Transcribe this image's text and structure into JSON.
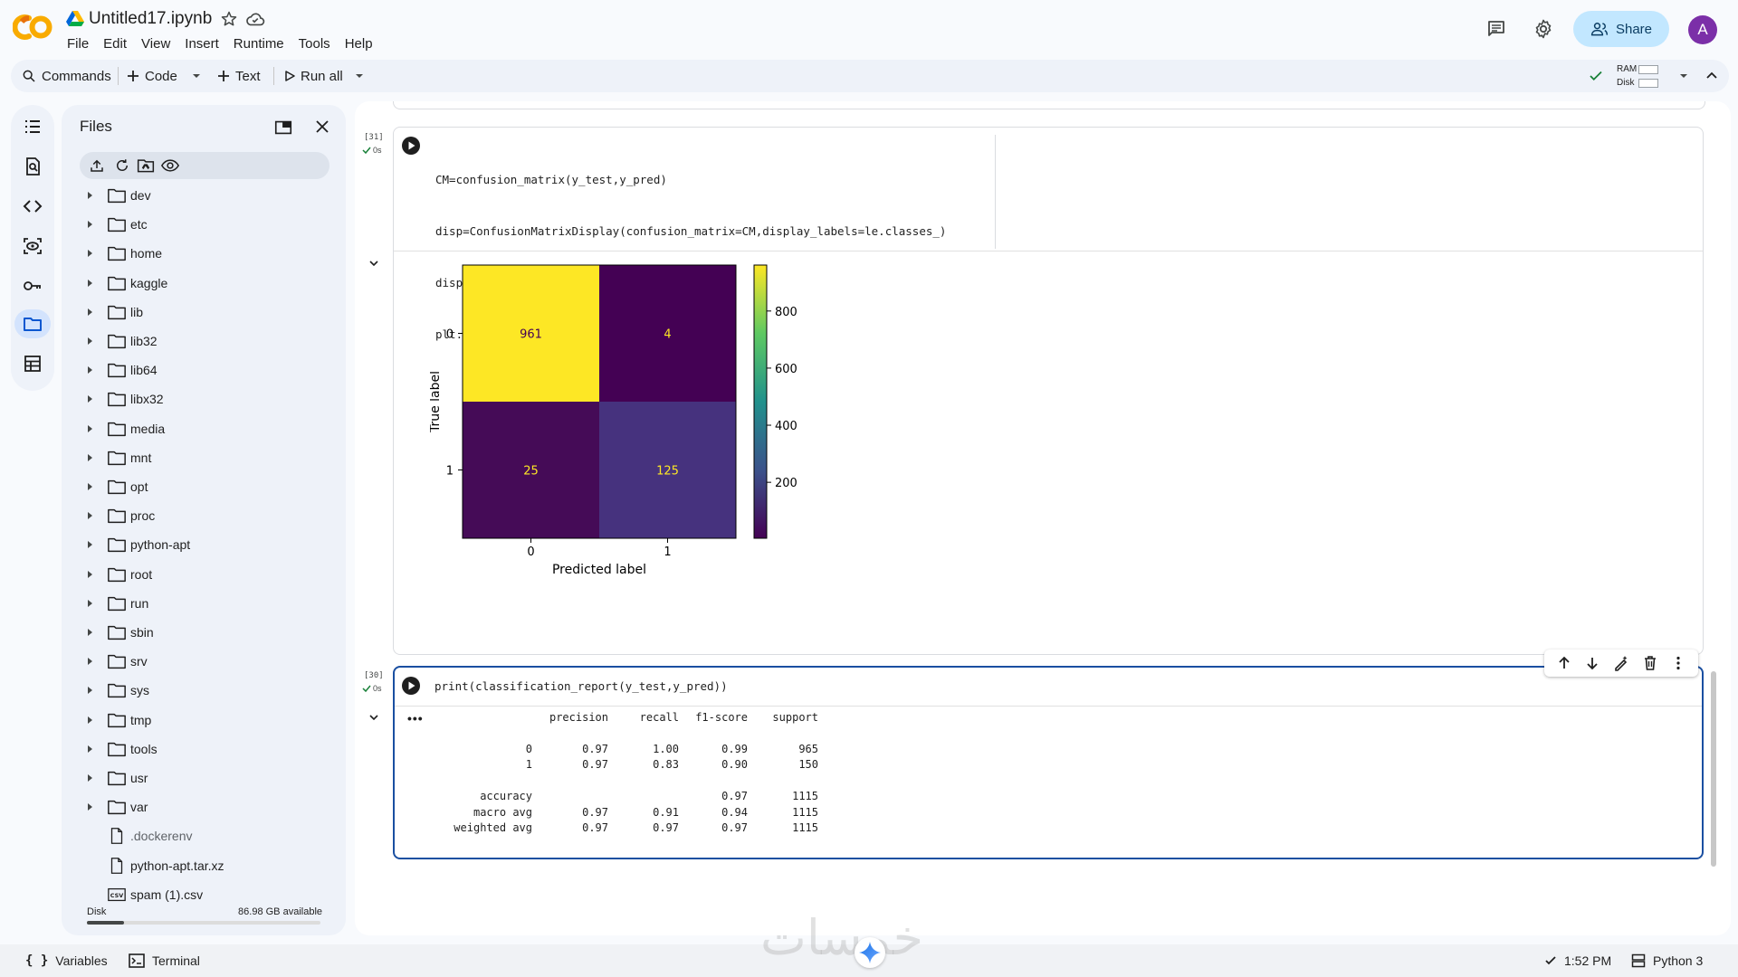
{
  "header": {
    "notebook_title": "Untitled17.ipynb",
    "menu": [
      "File",
      "Edit",
      "View",
      "Insert",
      "Runtime",
      "Tools",
      "Help"
    ],
    "share_label": "Share",
    "avatar_initial": "A"
  },
  "toolbar": {
    "commands_label": "Commands",
    "code_label": "Code",
    "text_label": "Text",
    "run_all_label": "Run all",
    "ram_label": "RAM",
    "disk_label": "Disk"
  },
  "rail": {
    "icons": [
      "table-of-contents-icon",
      "find-icon",
      "code-snippets-icon",
      "variables-inspector-icon",
      "secrets-key-icon",
      "files-icon",
      "data-table-icon"
    ],
    "active": "files-icon"
  },
  "files": {
    "title": "Files",
    "tree": [
      {
        "name": "dev",
        "type": "folder"
      },
      {
        "name": "etc",
        "type": "folder"
      },
      {
        "name": "home",
        "type": "folder"
      },
      {
        "name": "kaggle",
        "type": "folder"
      },
      {
        "name": "lib",
        "type": "folder"
      },
      {
        "name": "lib32",
        "type": "folder"
      },
      {
        "name": "lib64",
        "type": "folder"
      },
      {
        "name": "libx32",
        "type": "folder"
      },
      {
        "name": "media",
        "type": "folder"
      },
      {
        "name": "mnt",
        "type": "folder"
      },
      {
        "name": "opt",
        "type": "folder"
      },
      {
        "name": "proc",
        "type": "folder"
      },
      {
        "name": "python-apt",
        "type": "folder"
      },
      {
        "name": "root",
        "type": "folder"
      },
      {
        "name": "run",
        "type": "folder"
      },
      {
        "name": "sbin",
        "type": "folder"
      },
      {
        "name": "srv",
        "type": "folder"
      },
      {
        "name": "sys",
        "type": "folder"
      },
      {
        "name": "tmp",
        "type": "folder"
      },
      {
        "name": "tools",
        "type": "folder"
      },
      {
        "name": "usr",
        "type": "folder"
      },
      {
        "name": "var",
        "type": "folder"
      },
      {
        "name": ".dockerenv",
        "type": "file"
      },
      {
        "name": "python-apt.tar.xz",
        "type": "file"
      },
      {
        "name": "spam (1).csv",
        "type": "csv"
      }
    ],
    "disk_label": "Disk",
    "disk_available": "86.98 GB available",
    "disk_used_fraction": 0.16
  },
  "cells": {
    "cell31": {
      "exec_count": "[31]",
      "exec_time": "0s",
      "code_lines": [
        "CM=confusion_matrix(y_test,y_pred)",
        "disp=ConfusionMatrixDisplay(confusion_matrix=CM,display_labels=le.classes_)",
        "disp.plot()",
        "plt.show()"
      ]
    },
    "cell30": {
      "exec_count": "[30]",
      "exec_time": "0s",
      "code": "print(classification_report(y_test,y_pred))",
      "output_ellipsis": "•••",
      "report_header": [
        "",
        "precision",
        "recall",
        "f1-score",
        "support"
      ],
      "report_rows": [
        [
          "0",
          "0.97",
          "1.00",
          "0.99",
          "965"
        ],
        [
          "1",
          "0.97",
          "0.83",
          "0.90",
          "150"
        ]
      ],
      "report_summary": [
        [
          "accuracy",
          "",
          "",
          "0.97",
          "1115"
        ],
        [
          "macro avg",
          "0.97",
          "0.91",
          "0.94",
          "1115"
        ],
        [
          "weighted avg",
          "0.97",
          "0.97",
          "0.97",
          "1115"
        ]
      ]
    }
  },
  "chart_data": {
    "type": "heatmap",
    "title": "",
    "xlabel": "Predicted label",
    "ylabel": "True label",
    "x_categories": [
      "0",
      "1"
    ],
    "y_categories": [
      "0",
      "1"
    ],
    "values": [
      [
        961,
        4
      ],
      [
        25,
        125
      ]
    ],
    "colormap": "viridis",
    "colorbar": {
      "ticks": [
        200,
        400,
        600,
        800
      ],
      "range": [
        4,
        961
      ]
    },
    "cell_colors": [
      [
        "#fde725",
        "#440154"
      ],
      [
        "#450b57",
        "#46327e"
      ]
    ],
    "text_colors": [
      [
        "#440154",
        "#fde725"
      ],
      [
        "#fde725",
        "#fde725"
      ]
    ]
  },
  "statusbar": {
    "variables_label": "Variables",
    "terminal_label": "Terminal",
    "time": "1:52 PM",
    "runtime_label": "Python 3"
  },
  "watermark": "خمسات"
}
